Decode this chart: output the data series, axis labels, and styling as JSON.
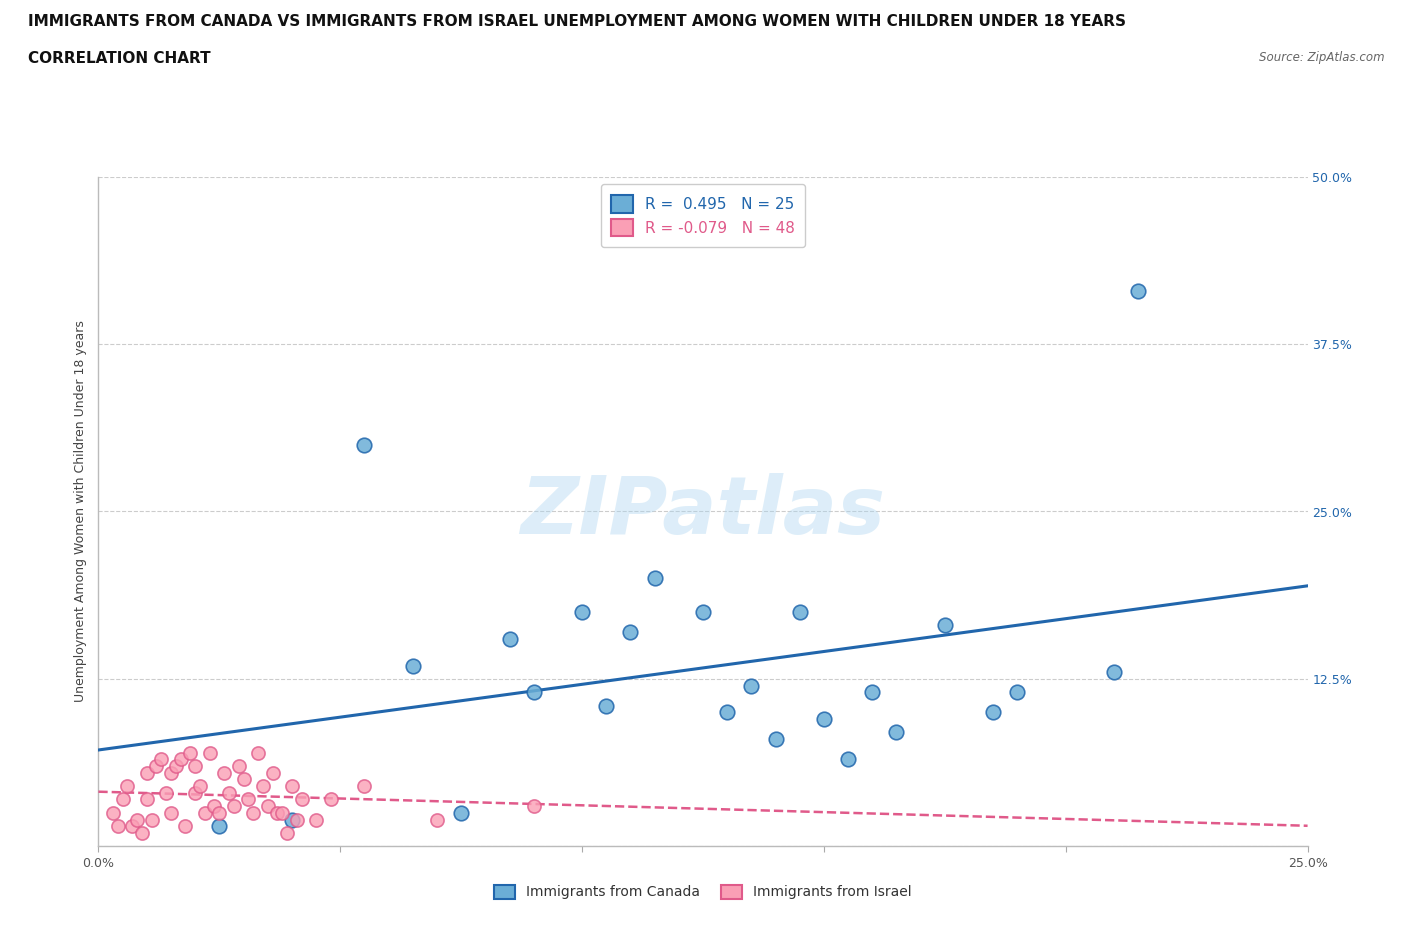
{
  "title_line1": "IMMIGRANTS FROM CANADA VS IMMIGRANTS FROM ISRAEL UNEMPLOYMENT AMONG WOMEN WITH CHILDREN UNDER 18 YEARS",
  "title_line2": "CORRELATION CHART",
  "source": "Source: ZipAtlas.com",
  "ylabel": "Unemployment Among Women with Children Under 18 years",
  "r_canada": 0.495,
  "n_canada": 25,
  "r_israel": -0.079,
  "n_israel": 48,
  "xlim": [
    0.0,
    0.25
  ],
  "ylim": [
    0.0,
    0.5
  ],
  "xticks": [
    0.0,
    0.05,
    0.1,
    0.15,
    0.2,
    0.25
  ],
  "yticks": [
    0.0,
    0.125,
    0.25,
    0.375,
    0.5
  ],
  "color_canada": "#6baed6",
  "color_israel": "#fa9fb5",
  "color_trendline_canada": "#2166ac",
  "color_trendline_israel": "#e05a8a",
  "canada_x": [
    0.025,
    0.04,
    0.055,
    0.065,
    0.075,
    0.085,
    0.09,
    0.1,
    0.105,
    0.11,
    0.115,
    0.125,
    0.13,
    0.135,
    0.14,
    0.145,
    0.15,
    0.155,
    0.16,
    0.165,
    0.175,
    0.185,
    0.19,
    0.21,
    0.215
  ],
  "canada_y": [
    0.015,
    0.02,
    0.3,
    0.135,
    0.025,
    0.155,
    0.115,
    0.175,
    0.105,
    0.16,
    0.2,
    0.175,
    0.1,
    0.12,
    0.08,
    0.175,
    0.095,
    0.065,
    0.115,
    0.085,
    0.165,
    0.1,
    0.115,
    0.13,
    0.415
  ],
  "israel_x": [
    0.003,
    0.004,
    0.005,
    0.006,
    0.007,
    0.008,
    0.009,
    0.01,
    0.01,
    0.011,
    0.012,
    0.013,
    0.014,
    0.015,
    0.015,
    0.016,
    0.017,
    0.018,
    0.019,
    0.02,
    0.02,
    0.021,
    0.022,
    0.023,
    0.024,
    0.025,
    0.026,
    0.027,
    0.028,
    0.029,
    0.03,
    0.031,
    0.032,
    0.033,
    0.034,
    0.035,
    0.036,
    0.037,
    0.038,
    0.039,
    0.04,
    0.041,
    0.042,
    0.045,
    0.048,
    0.055,
    0.07,
    0.09
  ],
  "israel_y": [
    0.025,
    0.015,
    0.035,
    0.045,
    0.015,
    0.02,
    0.01,
    0.035,
    0.055,
    0.02,
    0.06,
    0.065,
    0.04,
    0.025,
    0.055,
    0.06,
    0.065,
    0.015,
    0.07,
    0.04,
    0.06,
    0.045,
    0.025,
    0.07,
    0.03,
    0.025,
    0.055,
    0.04,
    0.03,
    0.06,
    0.05,
    0.035,
    0.025,
    0.07,
    0.045,
    0.03,
    0.055,
    0.025,
    0.025,
    0.01,
    0.045,
    0.02,
    0.035,
    0.02,
    0.035,
    0.045,
    0.02,
    0.03
  ],
  "background_color": "#ffffff",
  "grid_color": "#cccccc",
  "title_fontsize": 11,
  "label_fontsize": 9,
  "tick_fontsize": 9,
  "legend_label_canada": "Immigrants from Canada",
  "legend_label_israel": "Immigrants from Israel"
}
